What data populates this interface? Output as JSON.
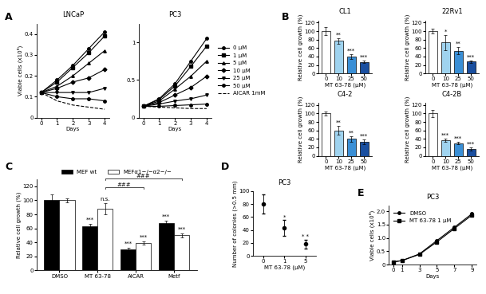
{
  "chart_data": [
    {
      "type": "line",
      "panel_label": "A",
      "title": "LNCaP",
      "x_label": "Days",
      "y_label": "Viable cells (x10⁶)",
      "x": [
        0,
        1,
        2,
        3,
        4
      ],
      "xlim": [
        -0.3,
        4.3
      ],
      "xticks": [
        0,
        1,
        2,
        3,
        4
      ],
      "ylim": [
        0,
        0.45
      ],
      "yticks": [
        0,
        0.1,
        0.2,
        0.3,
        0.4
      ],
      "series": [
        {
          "name": "0 µM",
          "color": "#000000",
          "marker": "o",
          "line_style": "solid",
          "values": [
            0.12,
            0.18,
            0.25,
            0.33,
            0.41
          ]
        },
        {
          "name": "1 µM",
          "color": "#000000",
          "marker": "s",
          "line_style": "solid",
          "values": [
            0.12,
            0.17,
            0.24,
            0.31,
            0.39
          ]
        },
        {
          "name": "5 µM",
          "color": "#000000",
          "marker": "^",
          "line_style": "solid",
          "values": [
            0.12,
            0.15,
            0.2,
            0.26,
            0.32
          ]
        },
        {
          "name": "10 µM",
          "color": "#000000",
          "marker": "D",
          "line_style": "solid",
          "values": [
            0.12,
            0.14,
            0.17,
            0.19,
            0.23
          ]
        },
        {
          "name": "25 µM",
          "color": "#000000",
          "marker": "v",
          "line_style": "solid",
          "values": [
            0.12,
            0.12,
            0.12,
            0.12,
            0.14
          ]
        },
        {
          "name": "50 µM",
          "color": "#000000",
          "marker": "o",
          "line_style": "solid",
          "values": [
            0.12,
            0.1,
            0.09,
            0.09,
            0.08
          ]
        },
        {
          "name": "AICAR 1mM",
          "color": "#000000",
          "marker": "none",
          "line_style": "dashed",
          "values": [
            0.12,
            0.08,
            0.06,
            0.05,
            0.04
          ]
        }
      ]
    },
    {
      "type": "line",
      "title": "PC3",
      "x_label": "Days",
      "legend": "center left",
      "x": [
        0,
        1,
        2,
        3,
        4
      ],
      "xlim": [
        -0.3,
        4.3
      ],
      "xticks": [
        0,
        1,
        2,
        3,
        4
      ],
      "ylim": [
        0,
        1.25
      ],
      "yticks": [
        0,
        0.5,
        1
      ],
      "series": [
        {
          "name": "0 µM",
          "color": "#000000",
          "marker": "o",
          "line_style": "solid",
          "values": [
            0.15,
            0.25,
            0.45,
            0.75,
            1.05
          ]
        },
        {
          "name": "1 µM",
          "color": "#000000",
          "marker": "s",
          "line_style": "solid",
          "values": [
            0.15,
            0.24,
            0.42,
            0.68,
            0.95
          ]
        },
        {
          "name": "5 µM",
          "color": "#000000",
          "marker": "^",
          "line_style": "solid",
          "values": [
            0.15,
            0.22,
            0.38,
            0.55,
            0.75
          ]
        },
        {
          "name": "10 µM",
          "color": "#000000",
          "marker": "D",
          "line_style": "solid",
          "values": [
            0.15,
            0.2,
            0.3,
            0.4,
            0.55
          ]
        },
        {
          "name": "25 µM",
          "color": "#000000",
          "marker": "v",
          "line_style": "solid",
          "values": [
            0.15,
            0.18,
            0.22,
            0.25,
            0.3
          ]
        },
        {
          "name": "50 µM",
          "color": "#000000",
          "marker": "o",
          "line_style": "solid",
          "values": [
            0.15,
            0.15,
            0.16,
            0.17,
            0.18
          ]
        },
        {
          "name": "AICAR 1mM",
          "color": "#000000",
          "marker": "none",
          "line_style": "dashed",
          "values": [
            0.15,
            0.14,
            0.13,
            0.12,
            0.12
          ]
        }
      ]
    },
    {
      "type": "bar",
      "panel_label": "B",
      "title": "CL1",
      "x_label": "MT 63-78 (µM)",
      "y_label": "Relative cell growth (%)",
      "categories": [
        "0",
        "10",
        "25",
        "50"
      ],
      "values": [
        100,
        77,
        40,
        27
      ],
      "errors": [
        10,
        6,
        5,
        3
      ],
      "stars": [
        "",
        "**",
        "***",
        "***"
      ],
      "colors": [
        "#ffffff",
        "#9fd3ef",
        "#3a8fd6",
        "#1a4fa0"
      ],
      "ylim": [
        0,
        125
      ],
      "yticks": [
        0,
        20,
        40,
        60,
        80,
        100,
        120
      ]
    },
    {
      "type": "bar",
      "title": "22Rv1",
      "x_label": "MT 63-78 (µM)",
      "y_label": "Relative cell growth (%)",
      "categories": [
        "0",
        "10",
        "25",
        "50"
      ],
      "values": [
        100,
        73,
        54,
        28
      ],
      "errors": [
        6,
        18,
        8,
        3
      ],
      "stars": [
        "",
        "*",
        "**",
        "***"
      ],
      "colors": [
        "#ffffff",
        "#9fd3ef",
        "#3a8fd6",
        "#1a4fa0"
      ],
      "ylim": [
        0,
        125
      ],
      "yticks": [
        0,
        20,
        40,
        60,
        80,
        100,
        120
      ]
    },
    {
      "type": "bar",
      "title": "C4-2",
      "x_label": "MT 63-78 (µM)",
      "y_label": "Relative cell growth (%)",
      "categories": [
        "0",
        "10",
        "25",
        "50"
      ],
      "values": [
        100,
        60,
        40,
        33
      ],
      "errors": [
        4,
        10,
        6,
        5
      ],
      "stars": [
        "",
        "**",
        "**",
        "***"
      ],
      "colors": [
        "#ffffff",
        "#9fd3ef",
        "#3a8fd6",
        "#1a4fa0"
      ],
      "ylim": [
        0,
        125
      ],
      "yticks": [
        0,
        20,
        40,
        60,
        80,
        100,
        120
      ]
    },
    {
      "type": "bar",
      "title": "C4-2B",
      "x_label": "MT 63-78 (µM)",
      "y_label": "Relative cell growth (%)",
      "categories": [
        "0",
        "10",
        "25",
        "50"
      ],
      "values": [
        100,
        37,
        30,
        16
      ],
      "errors": [
        8,
        4,
        3,
        3
      ],
      "stars": [
        "",
        "***",
        "***",
        "***"
      ],
      "colors": [
        "#ffffff",
        "#9fd3ef",
        "#3a8fd6",
        "#1a4fa0"
      ],
      "ylim": [
        0,
        125
      ],
      "yticks": [
        0,
        20,
        40,
        60,
        80,
        100,
        120
      ]
    },
    {
      "type": "grouped_bar",
      "panel_label": "C",
      "y_label": "Relative cell growth (%)",
      "legend": "lower center",
      "categories": [
        "DMSO",
        "MT 63-78",
        "AICAR",
        "Metf"
      ],
      "series": [
        {
          "name": "MEF wt",
          "color": "#000000",
          "values": [
            100,
            63,
            30,
            68
          ],
          "errors": [
            8,
            3,
            2,
            3
          ],
          "stars": [
            "",
            "***",
            "***",
            "***"
          ]
        },
        {
          "name": "MEFα1−/−α2−/−",
          "color": "#ffffff",
          "values": [
            100,
            88,
            39,
            50
          ],
          "errors": [
            3,
            8,
            2,
            3
          ],
          "stars": [
            "",
            "n.s.",
            "***",
            "***"
          ]
        }
      ],
      "brackets": [
        {
          "from": "MT 63-78",
          "to": "AICAR",
          "text": "###"
        },
        {
          "from": "MT 63-78",
          "to": "Metf",
          "text": "###"
        }
      ],
      "ylim": [
        0,
        130
      ],
      "yticks": [
        0,
        20,
        40,
        60,
        80,
        100,
        120
      ]
    },
    {
      "type": "scatter",
      "panel_label": "D",
      "title": "PC3",
      "x_label": "MT 63-78 (µM)",
      "y_label": "Number of colonies (>0.5 mm)",
      "categories": [
        "0",
        "1",
        "5"
      ],
      "values": [
        80,
        43,
        18
      ],
      "errors": [
        15,
        12,
        7
      ],
      "stars": [
        "",
        "*",
        "* *"
      ],
      "color": "#000000",
      "marker": "o",
      "ylim": [
        0,
        100
      ],
      "yticks": [
        0,
        20,
        40,
        60,
        80,
        100
      ]
    },
    {
      "type": "line",
      "panel_label": "E",
      "title": "PC3",
      "x_label": "Days",
      "y_label": "Viable cells (x10⁶)",
      "legend": "upper left",
      "x": [
        0,
        1,
        3,
        5,
        7,
        9
      ],
      "xlim": [
        -0.5,
        9.5
      ],
      "xticks": [
        0,
        1,
        3,
        5,
        7,
        9
      ],
      "ylim": [
        0,
        2.2
      ],
      "yticks": [
        0,
        0.5,
        1.0,
        1.5,
        2.0
      ],
      "series": [
        {
          "name": "DMSO",
          "color": "#000000",
          "marker": "o",
          "line_style": "solid",
          "values": [
            0.1,
            0.15,
            0.4,
            0.9,
            1.4,
            1.9
          ]
        },
        {
          "name": "MT 63-78 1 µM",
          "color": "#000000",
          "marker": "s",
          "line_style": "solid",
          "values": [
            0.1,
            0.15,
            0.38,
            0.85,
            1.35,
            1.85
          ]
        }
      ]
    }
  ]
}
